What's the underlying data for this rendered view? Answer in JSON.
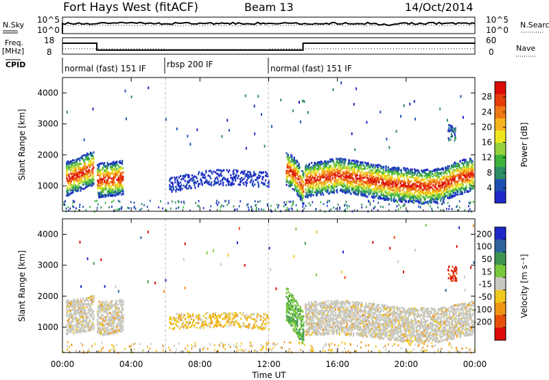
{
  "header": {
    "station": "Fort Hays West (fitACF)",
    "beam": "Beam 13",
    "date": "14/Oct/2014"
  },
  "noise_panel": {
    "left_label": "N.Sky",
    "left_ticks": [
      "10^5",
      "10^0"
    ],
    "right_label": "N.Search",
    "right_ticks": [
      "10^5",
      "10^0"
    ]
  },
  "freq_panel": {
    "left_label_1": "Freq.",
    "left_label_2": "[MHz]",
    "left_ticks": [
      "18",
      "8"
    ],
    "right_label": "Nave",
    "right_ticks": [
      "60",
      "0"
    ]
  },
  "cpid_panel": {
    "label": "CPID",
    "segments": [
      {
        "text": "normal (fast) 151 IF",
        "start": 0,
        "end": 6
      },
      {
        "text": "rbsp 200 IF",
        "start": 6,
        "end": 12
      },
      {
        "text": "normal (fast) 151 IF",
        "start": 12,
        "end": 24
      }
    ]
  },
  "colors": {
    "power_scale": [
      "#1e28c8",
      "#1e50b4",
      "#2d8c64",
      "#3cb43c",
      "#96d23c",
      "#f0e61e",
      "#f5b41e",
      "#f07814",
      "#e63c0a",
      "#dc0a0a"
    ],
    "velocity_scale": [
      "#1e28c8",
      "#2d64a0",
      "#3c9650",
      "#78c83c",
      "#c8c8c0",
      "#f0c81e",
      "#f09614",
      "#e6500a",
      "#dc0a0a"
    ],
    "velocity_scatter": "#c8c8c0"
  },
  "chart_data": [
    {
      "type": "heatmap",
      "panel": "power",
      "xlabel": "",
      "ylabel": "Slant Range [km]",
      "xlim": [
        0,
        24
      ],
      "ylim": [
        180,
        4500
      ],
      "yticks": [
        1000,
        2000,
        3000,
        4000
      ],
      "colorbar": {
        "label": "Power [dB]",
        "ticks": [
          4,
          8,
          12,
          16,
          20,
          24,
          28
        ],
        "range": [
          0,
          30
        ]
      },
      "series": [
        {
          "x": [
            0.2,
            0.6,
            1.0,
            1.4,
            1.8
          ],
          "center_km": [
            1250,
            1330,
            1420,
            1530,
            1600
          ]
        },
        {
          "x": [
            2.0,
            2.5,
            3.0,
            3.5
          ],
          "center_km": [
            1200,
            1230,
            1260,
            1300
          ]
        },
        {
          "x": [
            6.2,
            7.0,
            8.0,
            9.0,
            10.0,
            11.0,
            12.0
          ],
          "center_km": [
            1050,
            1150,
            1250,
            1300,
            1300,
            1250,
            1250
          ]
        },
        {
          "x": [
            13.0,
            13.4,
            13.8,
            14.0
          ],
          "center_km": [
            1600,
            1450,
            1150,
            950
          ]
        },
        {
          "x": [
            14.1,
            15.0,
            16.0,
            17.0,
            18.0,
            19.0,
            20.0,
            21.0,
            22.0,
            23.0,
            23.9
          ],
          "center_km": [
            1200,
            1280,
            1380,
            1300,
            1200,
            1100,
            1050,
            1000,
            1050,
            1300,
            1400
          ]
        }
      ]
    },
    {
      "type": "heatmap",
      "panel": "velocity",
      "xlabel": "Time UT",
      "ylabel": "Slant Range [km]",
      "xlim": [
        0,
        24
      ],
      "ylim": [
        180,
        4500
      ],
      "yticks": [
        1000,
        2000,
        3000,
        4000
      ],
      "xticks": [
        "00:00",
        "04:00",
        "08:00",
        "12:00",
        "16:00",
        "20:00",
        "00:00"
      ],
      "colorbar": {
        "label": "Velocity [m s⁻¹]",
        "ticks": [
          200,
          100,
          50,
          15,
          -15,
          -50,
          -100,
          -200
        ],
        "range": [
          -250,
          250
        ]
      },
      "series": [
        {
          "x": [
            0.2,
            1.0,
            1.8
          ],
          "center_km": [
            1350,
            1400,
            1500
          ]
        },
        {
          "x": [
            2.0,
            3.0,
            3.5
          ],
          "center_km": [
            1300,
            1350,
            1400
          ]
        },
        {
          "x": [
            6.2,
            8.0,
            10.0,
            12.0
          ],
          "center_km": [
            1200,
            1250,
            1250,
            1200
          ]
        },
        {
          "x": [
            13.0,
            13.5,
            14.0
          ],
          "center_km": [
            1800,
            1400,
            1000
          ]
        },
        {
          "x": [
            14.1,
            16.0,
            18.0,
            20.0,
            22.0,
            23.9
          ],
          "center_km": [
            1300,
            1350,
            1250,
            1100,
            1100,
            1350
          ]
        }
      ]
    }
  ]
}
